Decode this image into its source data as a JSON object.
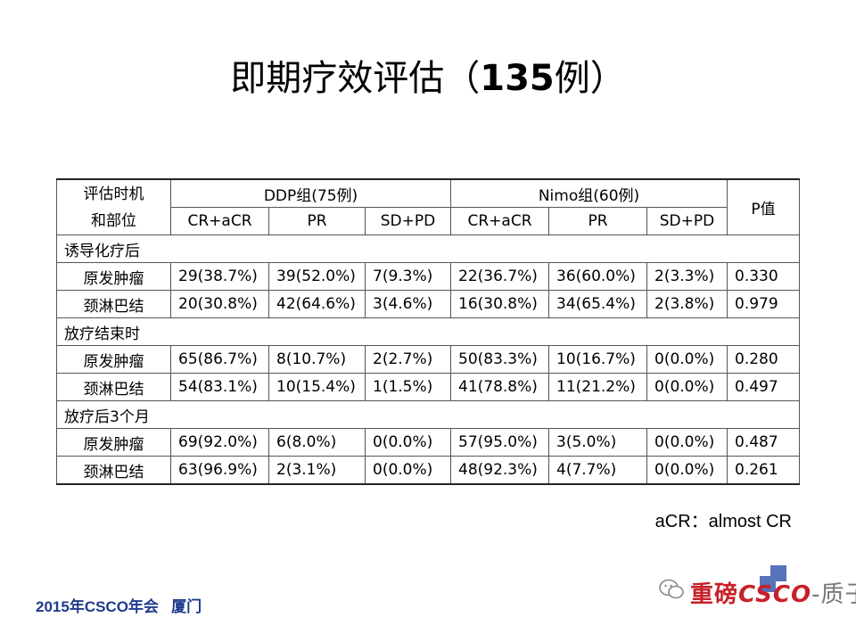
{
  "title": {
    "main": "即期疗效评估（",
    "number": "135",
    "suffix": "例）"
  },
  "table": {
    "corner": [
      "评估时机",
      "和部位"
    ],
    "group_headers": [
      "DDP组(75例)",
      "Nimo组(60例)"
    ],
    "p_header": "P值",
    "sub_headers": [
      "CR+aCR",
      "PR",
      "SD+PD",
      "CR+aCR",
      "PR",
      "SD+PD"
    ],
    "sections": [
      {
        "label": "诱导化疗后",
        "rows": [
          {
            "site": "原发肿瘤",
            "values": [
              "29(38.7%)",
              "39(52.0%)",
              "7(9.3%)",
              "22(36.7%)",
              "36(60.0%)",
              "2(3.3%)",
              "0.330"
            ]
          },
          {
            "site": "颈淋巴结",
            "values": [
              "20(30.8%)",
              "42(64.6%)",
              "3(4.6%)",
              "16(30.8%)",
              "34(65.4%)",
              "2(3.8%)",
              "0.979"
            ]
          }
        ]
      },
      {
        "label": "放疗结束时",
        "rows": [
          {
            "site": "原发肿瘤",
            "values": [
              "65(86.7%)",
              "8(10.7%)",
              "2(2.7%)",
              "50(83.3%)",
              "10(16.7%)",
              "0(0.0%)",
              "0.280"
            ]
          },
          {
            "site": "颈淋巴结",
            "values": [
              "54(83.1%)",
              "10(15.4%)",
              "1(1.5%)",
              "41(78.8%)",
              "11(21.2%)",
              "0(0.0%)",
              "0.497"
            ]
          }
        ]
      },
      {
        "label": "放疗后3个月",
        "rows": [
          {
            "site": "原发肿瘤",
            "values": [
              "69(92.0%)",
              "6(8.0%)",
              "0(0.0%)",
              "57(95.0%)",
              "3(5.0%)",
              "0(0.0%)",
              "0.487"
            ]
          },
          {
            "site": "颈淋巴结",
            "values": [
              "63(96.9%)",
              "2(3.1%)",
              "0(0.0%)",
              "48(92.3%)",
              "4(7.7%)",
              "0(0.0%)",
              "0.261"
            ]
          }
        ]
      }
    ]
  },
  "note": "aCR：almost CR",
  "footer": "2015年CSCO年会   厦门",
  "logo": {
    "icon": "wechat-icon",
    "text_prefix": "重磅",
    "text_csco": "CSCO",
    "text_suffix": "-质子"
  },
  "colors": {
    "footer": "#1f3b8c",
    "logo_red": "#c8202a",
    "logo_blue": "#3a5bb0"
  }
}
